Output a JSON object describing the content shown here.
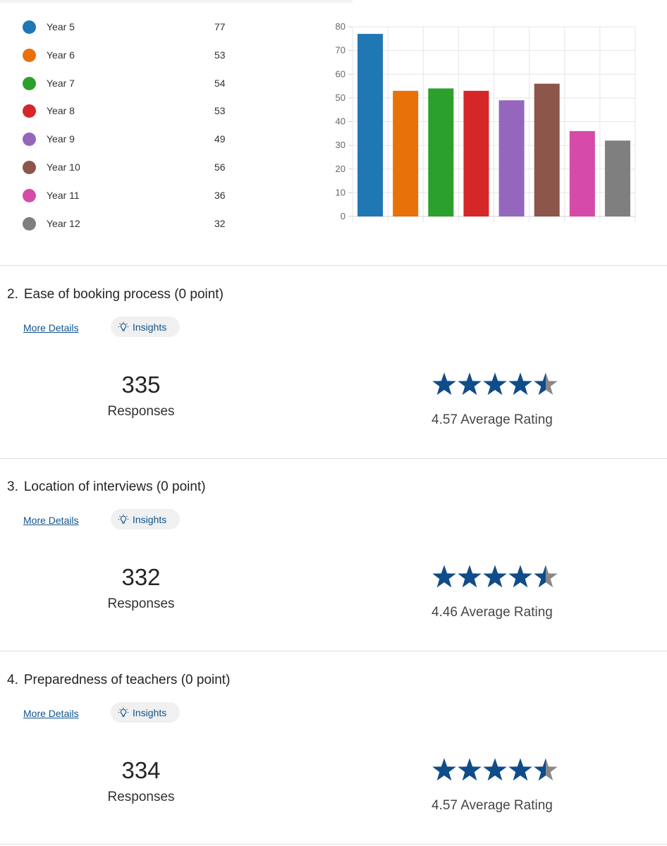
{
  "chart_data": {
    "type": "bar",
    "categories": [
      "Year 5",
      "Year 6",
      "Year 7",
      "Year 8",
      "Year 9",
      "Year 10",
      "Year 11",
      "Year 12"
    ],
    "values": [
      77,
      53,
      54,
      53,
      49,
      56,
      36,
      32
    ],
    "colors": [
      "#1f77b4",
      "#e8710a",
      "#2ca02c",
      "#d62728",
      "#9467bd",
      "#8c564b",
      "#d64aa9",
      "#7f7f7f"
    ],
    "ylim": [
      0,
      80
    ],
    "yticks": [
      "0",
      "10",
      "20",
      "30",
      "40",
      "50",
      "60",
      "70",
      "80"
    ],
    "grid": true,
    "title": "",
    "xlabel": "",
    "ylabel": ""
  },
  "legend": {
    "items": [
      {
        "label": "Year 5",
        "count": "77",
        "color": "#1f77b4"
      },
      {
        "label": "Year 6",
        "count": "53",
        "color": "#e8710a"
      },
      {
        "label": "Year 7",
        "count": "54",
        "color": "#2ca02c"
      },
      {
        "label": "Year 8",
        "count": "53",
        "color": "#d62728"
      },
      {
        "label": "Year 9",
        "count": "49",
        "color": "#9467bd"
      },
      {
        "label": "Year 10",
        "count": "56",
        "color": "#8c564b"
      },
      {
        "label": "Year 11",
        "count": "36",
        "color": "#d64aa9"
      },
      {
        "label": "Year 12",
        "count": "32",
        "color": "#7f7f7f"
      }
    ]
  },
  "questions": [
    {
      "number": "2.",
      "title": "Ease of booking process (0 point)",
      "more_details": "More Details",
      "insights": "Insights",
      "responses": "335",
      "responses_label": "Responses",
      "rating": 4.57,
      "rating_label": "4.57 Average Rating"
    },
    {
      "number": "3.",
      "title": "Location of interviews (0 point)",
      "more_details": "More Details",
      "insights": "Insights",
      "responses": "332",
      "responses_label": "Responses",
      "rating": 4.46,
      "rating_label": "4.46 Average Rating"
    },
    {
      "number": "4.",
      "title": "Preparedness of teachers (0 point)",
      "more_details": "More Details",
      "insights": "Insights",
      "responses": "334",
      "responses_label": "Responses",
      "rating": 4.57,
      "rating_label": "4.57 Average Rating"
    }
  ],
  "colors": {
    "star_filled": "#0f4c8a",
    "star_empty": "#8a8886",
    "link": "#0f548c"
  },
  "icons": {
    "insights": "lightbulb-icon",
    "rating": "star-icon"
  }
}
